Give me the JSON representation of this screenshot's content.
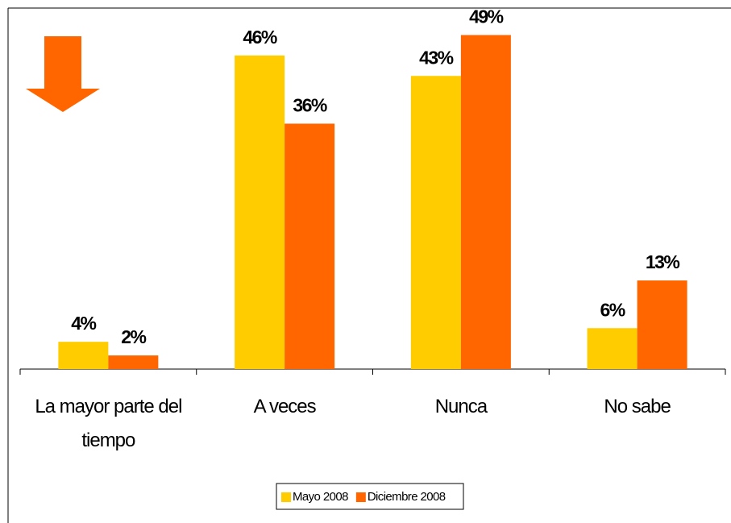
{
  "chart_data": {
    "type": "bar",
    "categories": [
      "La mayor parte del tiempo",
      "A veces",
      "Nunca",
      "No sabe"
    ],
    "series": [
      {
        "name": "Mayo 2008",
        "color": "#FFCC00",
        "values": [
          4,
          46,
          43,
          6
        ],
        "value_labels": [
          "4%",
          "46%",
          "43%",
          "6%"
        ]
      },
      {
        "name": "Diciembre 2008",
        "color": "#FF6600",
        "values": [
          2,
          36,
          49,
          13
        ],
        "value_labels": [
          "2%",
          "36%",
          "49%",
          "13%"
        ]
      }
    ],
    "ylim": [
      0,
      50
    ],
    "legend": "bottom"
  }
}
